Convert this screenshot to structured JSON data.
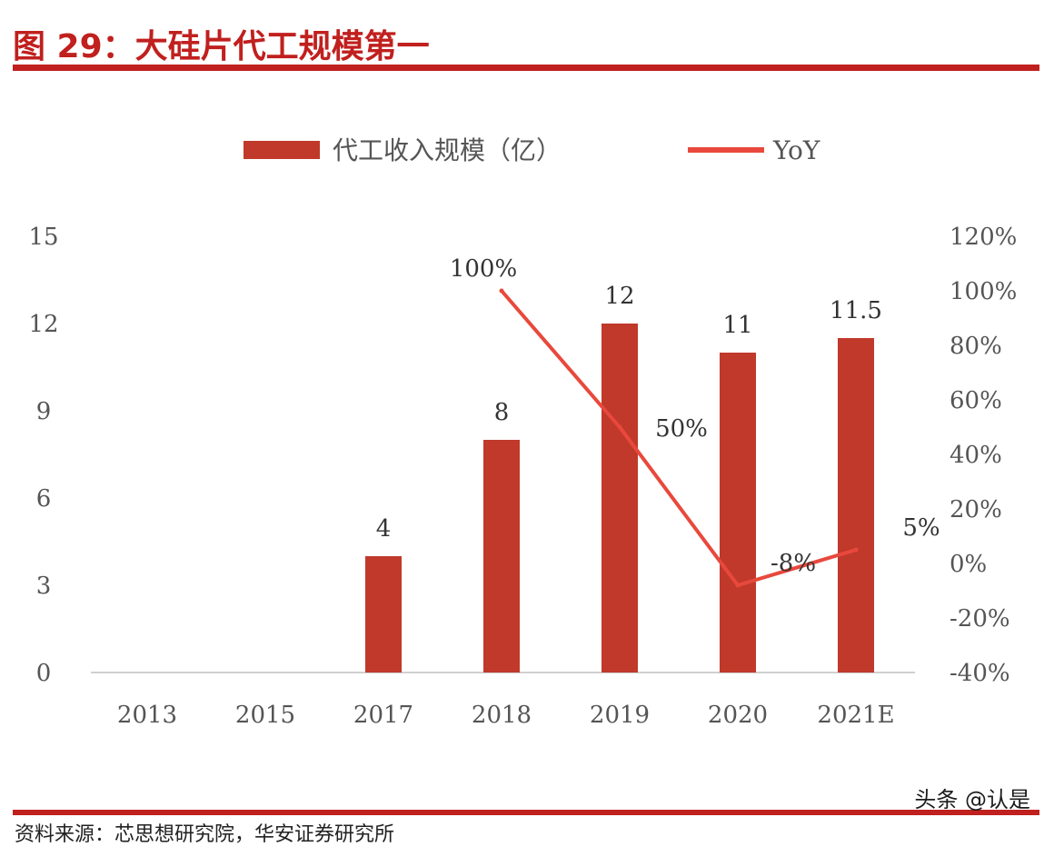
{
  "header": {
    "title": "图 29：大硅片代工规模第一"
  },
  "footer": {
    "source": "资料来源：芯思想研究院，华安证券研究所",
    "watermark": "头条 @认是"
  },
  "colors": {
    "bar": "#c0392b",
    "line": "#e8493c",
    "accent": "#c0201e"
  },
  "chart_data": {
    "type": "bar",
    "categories": [
      "2013",
      "2015",
      "2017",
      "2018",
      "2019",
      "2020",
      "2021E"
    ],
    "series": [
      {
        "name": "代工收入规模（亿）",
        "type": "bar",
        "axis": "left",
        "values": [
          null,
          null,
          4,
          8,
          12,
          11,
          11.5
        ],
        "labels": [
          "",
          "",
          "4",
          "8",
          "12",
          "11",
          "11.5"
        ]
      },
      {
        "name": "YoY",
        "type": "line",
        "axis": "right",
        "values": [
          null,
          null,
          null,
          100,
          50,
          -8,
          5
        ],
        "labels": [
          "",
          "",
          "",
          "100%",
          "50%",
          "-8%",
          "5%"
        ]
      }
    ],
    "y_left": {
      "range": [
        0,
        15
      ],
      "ticks": [
        "0",
        "3",
        "6",
        "9",
        "12",
        "15"
      ]
    },
    "y_right": {
      "range": [
        -40,
        120
      ],
      "ticks": [
        "-40%",
        "-20%",
        "0%",
        "20%",
        "40%",
        "60%",
        "80%",
        "100%",
        "120%"
      ]
    },
    "legend": {
      "position": "top"
    },
    "grid": false
  }
}
